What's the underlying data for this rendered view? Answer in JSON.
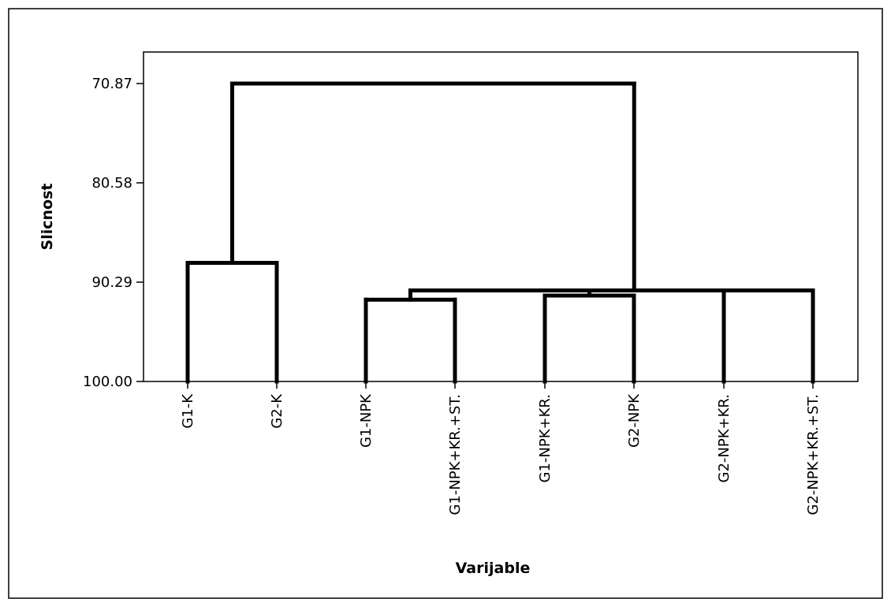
{
  "chart_data": {
    "type": "dendrogram",
    "xlabel": "Varijable",
    "ylabel": "Slicnost",
    "yticks": [
      "70.87",
      "80.58",
      "90.29",
      "100.00"
    ],
    "ylim": [
      100.0,
      70.87
    ],
    "leaves": [
      "G1-K",
      "G2-K",
      "G1-NPK",
      "G1-NPK+KR.+ST.",
      "G1-NPK+KR.",
      "G2-NPK",
      "G2-NPK+KR.",
      "G2-NPK+KR.+ST."
    ],
    "merges": [
      {
        "left": "G1-NPK+KR.",
        "right": "G2-NPK",
        "similarity": 91.6
      },
      {
        "left": "G1-NPK",
        "right": "G1-NPK+KR.+ST.",
        "similarity": 92.0
      },
      {
        "left": "G2-NPK+KR.",
        "right": "G2-NPK+KR.+ST.",
        "similarity": 91.1
      },
      {
        "left": "G1-K",
        "right": "G2-K",
        "similarity": 88.4
      },
      {
        "left": "G1-NPK + G1-NPK+KR.+ST.",
        "right": "G1-NPK+KR. + G2-NPK",
        "similarity": 91.1
      },
      {
        "left": "G1-NPK .. G2-NPK",
        "right": "G2-NPK+KR. + G2-NPK+KR.+ST.",
        "similarity": 91.1
      },
      {
        "left": "G1-K + G2-K",
        "right": "G1-NPK .. G2-NPK+KR.+ST.",
        "similarity": 70.87
      }
    ]
  }
}
